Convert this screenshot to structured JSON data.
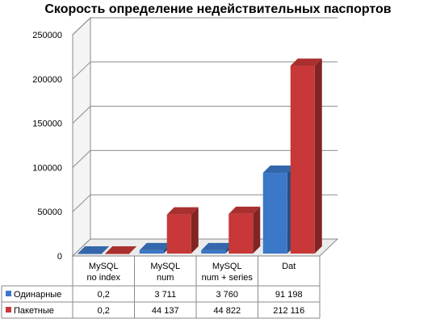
{
  "chart_data": {
    "type": "bar",
    "title": "Скорость определение недействительных паспортов",
    "categories": [
      [
        "MySQL",
        "no index"
      ],
      [
        "MySQL",
        "num"
      ],
      [
        "MySQL",
        "num + series"
      ],
      [
        "Dat"
      ]
    ],
    "series": [
      {
        "name": "Одинарные",
        "color": "#3c78c8",
        "values": [
          0.2,
          3711,
          3760,
          91198
        ],
        "labels": [
          "0,2",
          "3 711",
          "3 760",
          "91 198"
        ]
      },
      {
        "name": "Пакетные",
        "color": "#c83838",
        "values": [
          0.2,
          44137,
          44822,
          212116
        ],
        "labels": [
          "0,2",
          "44 137",
          "44 822",
          "212 116"
        ]
      }
    ],
    "ylim": [
      0,
      250000
    ],
    "yticks": [
      0,
      50000,
      100000,
      150000,
      200000,
      250000
    ],
    "grid": true,
    "legend": "data-table"
  }
}
